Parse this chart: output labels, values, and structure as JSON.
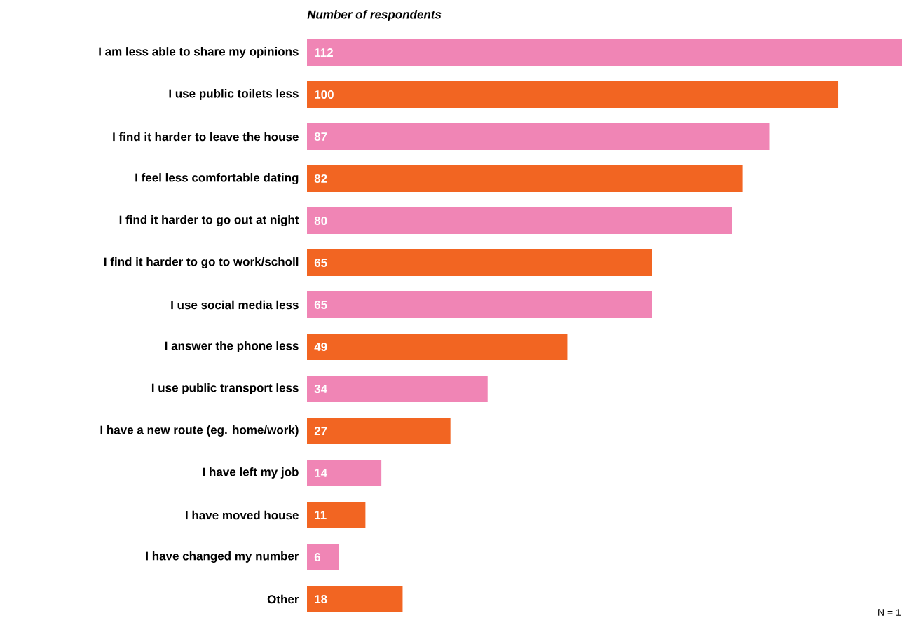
{
  "chart_data": {
    "type": "bar",
    "orientation": "horizontal",
    "title": "Number of respondents",
    "categories": [
      "I am less able to share my opinions",
      "I use public toilets less",
      "I find it harder to leave the house",
      "I feel less comfortable dating",
      "I find it harder to go out at night",
      "I find it harder to go to work/scholl",
      "I use social media less",
      "I answer the phone less",
      "I use public transport less",
      "I have a new route (eg. home/work)",
      "I have left my job",
      "I have moved house",
      "I have changed my number",
      "Other"
    ],
    "values": [
      112,
      100,
      87,
      82,
      80,
      65,
      65,
      49,
      34,
      27,
      14,
      11,
      6,
      18
    ],
    "colors": [
      "#f085b5",
      "#f26522",
      "#f085b5",
      "#f26522",
      "#f085b5",
      "#f26522",
      "#f085b5",
      "#f26522",
      "#f085b5",
      "#f26522",
      "#f085b5",
      "#f26522",
      "#f085b5",
      "#f26522"
    ],
    "data_labels": true,
    "annotations": [
      "N = 1"
    ]
  }
}
